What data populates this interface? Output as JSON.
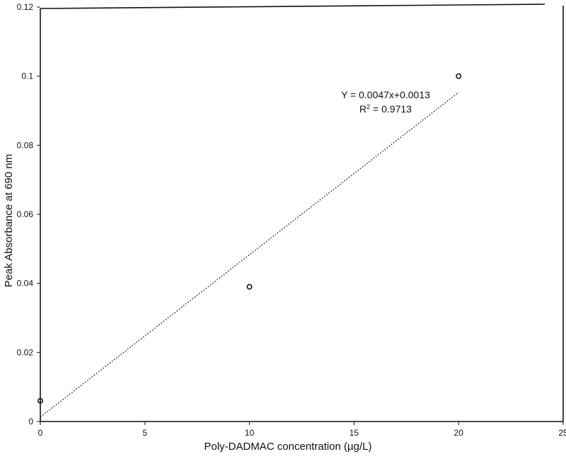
{
  "chart_data": {
    "type": "scatter",
    "title": "",
    "xlabel": "Poly-DADMAC concentration (µg/L)",
    "ylabel": "Peak Absorbance at 690 nm",
    "xlim": [
      0,
      25
    ],
    "ylim": [
      0,
      0.12
    ],
    "x_ticks": [
      0,
      5,
      10,
      15,
      20,
      25
    ],
    "x_tick_labels": [
      "0",
      "5",
      "10",
      "15",
      "20",
      "25"
    ],
    "y_ticks": [
      0,
      0.02,
      0.04,
      0.06,
      0.08,
      0.1,
      0.12
    ],
    "y_tick_labels": [
      "0",
      "0.02",
      "0.04",
      "0.06",
      "0.08",
      "0.1",
      "0.12"
    ],
    "grid": false,
    "legend": "none",
    "series": [
      {
        "x": [
          0,
          10,
          20
        ],
        "y": [
          0.006,
          0.039,
          0.1
        ]
      }
    ],
    "trendline": {
      "style": "dotted",
      "slope": 0.0047,
      "intercept": 0.0013,
      "x_range": [
        0,
        20
      ]
    },
    "annotations": {
      "equation": "Y = 0.0047x+0.0013",
      "r_squared_prefix": "R",
      "r_squared_exponent": "2",
      "r_squared_value": " = 0.9713"
    }
  }
}
